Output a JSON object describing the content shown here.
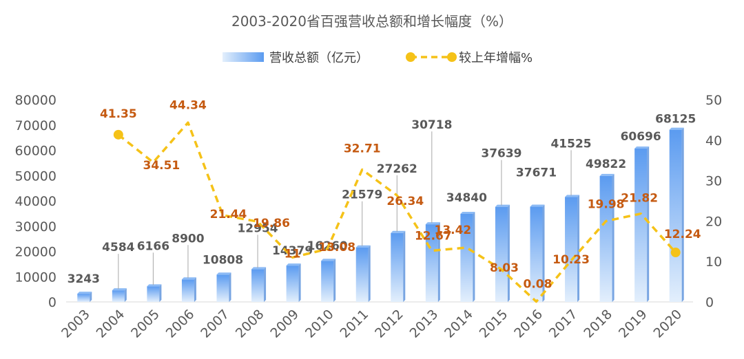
{
  "chart_data": {
    "type": "bar",
    "title": "2003-2020省百强营收总额和增长幅度（%）",
    "categories": [
      "2003",
      "2004",
      "2005",
      "2006",
      "2007",
      "2008",
      "2009",
      "2010",
      "2011",
      "2012",
      "2013",
      "2014",
      "2015",
      "2016",
      "2017",
      "2018",
      "2019",
      "2020"
    ],
    "series": [
      {
        "name": "营收总额（亿元）",
        "type": "bar",
        "axis": "left",
        "values": [
          3243,
          4584,
          6166,
          8900,
          10808,
          12954,
          14379,
          16260,
          21579,
          27262,
          30718,
          34840,
          37639,
          37671,
          41525,
          49822,
          60696,
          68125
        ],
        "labels": [
          "3243",
          "4584",
          "6166",
          "8900",
          "10808",
          "12954",
          "14379",
          "16260",
          "21579",
          "27262",
          "30718",
          "34840",
          "37639",
          "37671",
          "41525",
          "49822",
          "60696",
          "68125"
        ]
      },
      {
        "name": "较上年增幅%",
        "type": "line",
        "axis": "right",
        "values": [
          null,
          41.35,
          34.51,
          44.34,
          21.44,
          19.86,
          11,
          13.08,
          32.71,
          26.34,
          12.67,
          13.42,
          8.03,
          0.08,
          10.23,
          19.98,
          21.82,
          12.24
        ],
        "labels": [
          "",
          "41.35",
          "34.51",
          "44.34",
          "21.44",
          "19.86",
          "11",
          "13.08",
          "32.71",
          "26.34",
          "12.67",
          "13.42",
          "8.03",
          "0.08",
          "10.23",
          "19.98",
          "21.82",
          "12.24"
        ]
      }
    ],
    "y_left": {
      "min": 0,
      "max": 80000,
      "ticks": [
        "0",
        "10000",
        "20000",
        "30000",
        "40000",
        "50000",
        "60000",
        "70000",
        "80000"
      ]
    },
    "y_right": {
      "min": 0,
      "max": 50,
      "ticks": [
        "0",
        "10",
        "20",
        "30",
        "40",
        "50"
      ]
    },
    "grid": false,
    "legend_position": "top",
    "colors": {
      "bar_top": "#5B9BF0",
      "bar_bottom": "#E3EFFC",
      "line": "#F5C218",
      "line_label": "#C55A11",
      "bar_label": "#595959"
    }
  }
}
